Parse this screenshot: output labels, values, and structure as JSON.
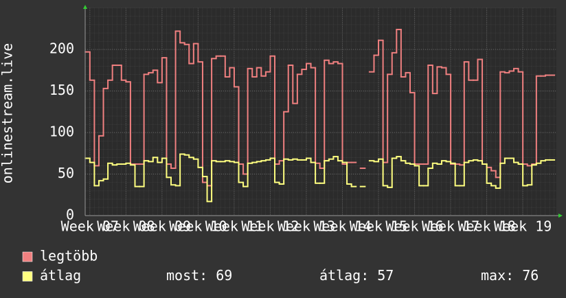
{
  "chart_data": {
    "type": "line",
    "step": true,
    "y_label": "onlinestream.live",
    "xlim": [
      6.87,
      19.93
    ],
    "ylim": [
      0,
      250
    ],
    "yticks": [
      0,
      50,
      100,
      150,
      200
    ],
    "xticks": [
      {
        "value": 7,
        "label": "Week 07"
      },
      {
        "value": 8,
        "label": "Week 08"
      },
      {
        "value": 9,
        "label": "Week 09"
      },
      {
        "value": 10,
        "label": "Week 10"
      },
      {
        "value": 11,
        "label": "Week 11"
      },
      {
        "value": 12,
        "label": "Week 12"
      },
      {
        "value": 13,
        "label": "Week 13"
      },
      {
        "value": 14,
        "label": "Week 14"
      },
      {
        "value": 15,
        "label": "Week 15"
      },
      {
        "value": 16,
        "label": "Week 16"
      },
      {
        "value": 17,
        "label": "Week 17"
      },
      {
        "value": 18,
        "label": "Week 18"
      },
      {
        "value": 19,
        "label": "Week 19"
      }
    ],
    "grid": true,
    "x": [
      6.875,
      7,
      7.125,
      7.25,
      7.375,
      7.5,
      7.625,
      7.75,
      7.875,
      8,
      8.125,
      8.25,
      8.375,
      8.5,
      8.625,
      8.75,
      8.875,
      9,
      9.125,
      9.25,
      9.375,
      9.5,
      9.625,
      9.75,
      9.875,
      10,
      10.125,
      10.25,
      10.375,
      10.5,
      10.625,
      10.75,
      10.875,
      11,
      11.125,
      11.25,
      11.375,
      11.5,
      11.625,
      11.75,
      11.875,
      12,
      12.125,
      12.25,
      12.375,
      12.5,
      12.625,
      12.75,
      12.875,
      13,
      13.125,
      13.25,
      13.375,
      13.5,
      13.625,
      13.75,
      13.875,
      14,
      14.125,
      14.25,
      14.375,
      14.5,
      14.625,
      14.75,
      14.875,
      15,
      15.125,
      15.25,
      15.375,
      15.5,
      15.625,
      15.75,
      15.875,
      16,
      16.125,
      16.25,
      16.375,
      16.5,
      16.625,
      16.75,
      16.875,
      17,
      17.125,
      17.25,
      17.375,
      17.5,
      17.625,
      17.75,
      17.875,
      18,
      18.125,
      18.25,
      18.375,
      18.5,
      18.625,
      18.75,
      18.875,
      19,
      19.125,
      19.25,
      19.375,
      19.5,
      19.625,
      19.75
    ],
    "series": [
      {
        "name": "legtöbb",
        "color": "#f08080",
        "values": [
          197,
          163,
          60,
          96,
          153,
          163,
          181,
          181,
          163,
          161,
          62,
          62,
          62,
          170,
          172,
          175,
          160,
          190,
          62,
          57,
          222,
          208,
          206,
          183,
          207,
          185,
          40,
          36,
          189,
          192,
          192,
          167,
          178,
          155,
          62,
          50,
          177,
          167,
          178,
          168,
          173,
          192,
          62,
          66,
          125,
          181,
          135,
          170,
          176,
          183,
          178,
          63,
          57,
          187,
          183,
          185,
          183,
          62,
          64,
          64,
          null,
          57,
          null,
          173,
          193,
          211,
          64,
          170,
          196,
          224,
          167,
          172,
          148,
          62,
          62,
          62,
          181,
          147,
          179,
          178,
          170,
          62,
          62,
          61,
          185,
          163,
          163,
          188,
          62,
          58,
          54,
          46,
          173,
          172,
          174,
          177,
          173,
          62,
          60,
          62,
          168,
          168,
          169,
          169
        ]
      },
      {
        "name": "átlag",
        "color": "#ffff80",
        "values": [
          69,
          64,
          36,
          42,
          44,
          63,
          61,
          62,
          62,
          63,
          61,
          35,
          35,
          66,
          65,
          70,
          64,
          69,
          46,
          37,
          36,
          74,
          73,
          70,
          68,
          58,
          47,
          17,
          66,
          65,
          65,
          66,
          65,
          64,
          40,
          35,
          63,
          64,
          65,
          66,
          67,
          69,
          40,
          38,
          68,
          67,
          68,
          67,
          67,
          69,
          64,
          39,
          39,
          66,
          68,
          71,
          66,
          64,
          38,
          35,
          null,
          35,
          null,
          66,
          65,
          68,
          36,
          34,
          69,
          71,
          66,
          63,
          62,
          60,
          36,
          36,
          57,
          63,
          62,
          66,
          65,
          63,
          36,
          36,
          64,
          66,
          67,
          66,
          62,
          39,
          36,
          33,
          63,
          69,
          69,
          64,
          62,
          36,
          37,
          61,
          63,
          66,
          67,
          67
        ]
      }
    ],
    "stats": [
      {
        "label": "most:",
        "value": 69
      },
      {
        "label": "átlag:",
        "value": 57
      },
      {
        "label": "max:",
        "value": 76
      }
    ]
  }
}
